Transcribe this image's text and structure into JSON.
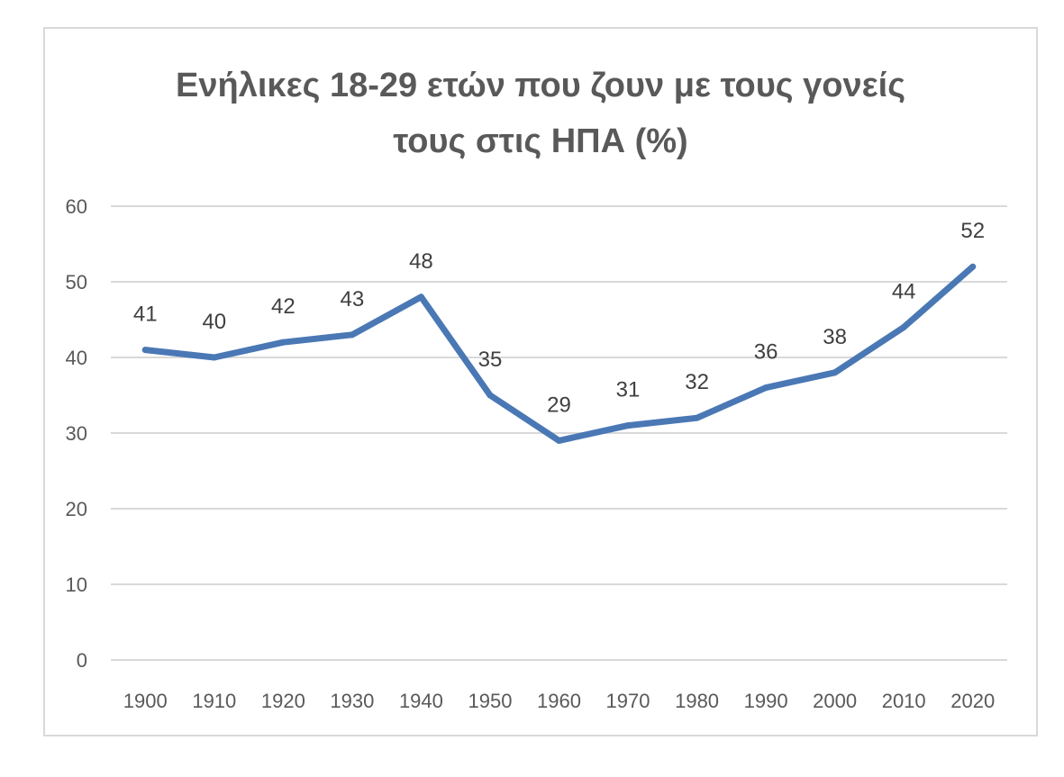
{
  "chart_data": {
    "type": "line",
    "title_lines": [
      "Ενήλικες 18-29 ετών που ζουν με τους γονείς",
      "τους στις ΗΠΑ (%)"
    ],
    "categories": [
      "1900",
      "1910",
      "1920",
      "1930",
      "1940",
      "1950",
      "1960",
      "1970",
      "1980",
      "1990",
      "2000",
      "2010",
      "2020"
    ],
    "series": [
      {
        "values": [
          41,
          40,
          42,
          43,
          48,
          35,
          29,
          31,
          32,
          36,
          38,
          44,
          52
        ]
      }
    ],
    "data_labels": [
      "41",
      "40",
      "42",
      "43",
      "48",
      "35",
      "29",
      "31",
      "32",
      "36",
      "38",
      "44",
      "52"
    ],
    "y_ticks": [
      "0",
      "10",
      "20",
      "30",
      "40",
      "50",
      "60"
    ],
    "ylim": [
      0,
      60
    ],
    "xlabel": "",
    "ylabel": "",
    "grid": true,
    "legend": "none",
    "colors": {
      "line": "#4a78b5",
      "grid": "#d9d9d9",
      "text": "#595959",
      "frame": "#d9d9d9"
    }
  }
}
